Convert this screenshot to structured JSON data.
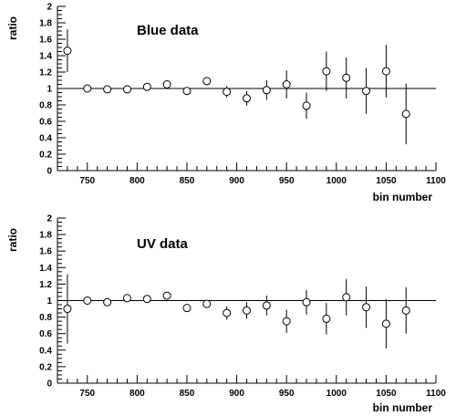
{
  "chart_data": [
    {
      "type": "scatter",
      "title": "Blue data",
      "xlabel": "bin number",
      "ylabel": "ratio",
      "xlim": [
        720,
        1100
      ],
      "ylim": [
        0,
        2
      ],
      "xticks": [
        "750",
        "800",
        "850",
        "900",
        "950",
        "1000",
        "1050",
        "1100"
      ],
      "yticks": [
        "0",
        "0.2",
        "0.4",
        "0.6",
        "0.8",
        "1",
        "1.2",
        "1.4",
        "1.6",
        "1.8",
        "2"
      ],
      "reference_line": 1,
      "marker": "open-circle",
      "grid": false,
      "points": [
        {
          "x": 730,
          "y": 1.46,
          "err": 0.26
        },
        {
          "x": 750,
          "y": 1.0,
          "err": 0.0
        },
        {
          "x": 770,
          "y": 0.99,
          "err": 0.0
        },
        {
          "x": 790,
          "y": 0.99,
          "err": 0.0
        },
        {
          "x": 810,
          "y": 1.02,
          "err": 0.0
        },
        {
          "x": 830,
          "y": 1.05,
          "err": 0.0
        },
        {
          "x": 850,
          "y": 0.97,
          "err": 0.0
        },
        {
          "x": 870,
          "y": 1.09,
          "err": 0.0
        },
        {
          "x": 890,
          "y": 0.96,
          "err": 0.07
        },
        {
          "x": 910,
          "y": 0.88,
          "err": 0.09
        },
        {
          "x": 930,
          "y": 0.98,
          "err": 0.12
        },
        {
          "x": 950,
          "y": 1.05,
          "err": 0.17
        },
        {
          "x": 970,
          "y": 0.79,
          "err": 0.16
        },
        {
          "x": 990,
          "y": 1.21,
          "err": 0.24
        },
        {
          "x": 1010,
          "y": 1.13,
          "err": 0.25
        },
        {
          "x": 1030,
          "y": 0.97,
          "err": 0.28
        },
        {
          "x": 1050,
          "y": 1.21,
          "err": 0.32
        },
        {
          "x": 1070,
          "y": 0.69,
          "err": 0.37
        }
      ]
    },
    {
      "type": "scatter",
      "title": "UV data",
      "xlabel": "bin number",
      "ylabel": "ratio",
      "xlim": [
        720,
        1100
      ],
      "ylim": [
        0,
        2
      ],
      "xticks": [
        "750",
        "800",
        "850",
        "900",
        "950",
        "1000",
        "1050",
        "1100"
      ],
      "yticks": [
        "0",
        "0.2",
        "0.4",
        "0.6",
        "0.8",
        "1",
        "1.2",
        "1.4",
        "1.6",
        "1.8",
        "2"
      ],
      "reference_line": 1,
      "marker": "open-circle",
      "grid": false,
      "points": [
        {
          "x": 730,
          "y": 0.9,
          "err": 0.42
        },
        {
          "x": 750,
          "y": 1.0,
          "err": 0.0
        },
        {
          "x": 770,
          "y": 0.98,
          "err": 0.0
        },
        {
          "x": 790,
          "y": 1.03,
          "err": 0.0
        },
        {
          "x": 810,
          "y": 1.02,
          "err": 0.0
        },
        {
          "x": 830,
          "y": 1.06,
          "err": 0.0
        },
        {
          "x": 850,
          "y": 0.91,
          "err": 0.0
        },
        {
          "x": 870,
          "y": 0.96,
          "err": 0.0
        },
        {
          "x": 890,
          "y": 0.85,
          "err": 0.08
        },
        {
          "x": 910,
          "y": 0.88,
          "err": 0.1
        },
        {
          "x": 930,
          "y": 0.94,
          "err": 0.12
        },
        {
          "x": 950,
          "y": 0.75,
          "err": 0.14
        },
        {
          "x": 970,
          "y": 0.98,
          "err": 0.15
        },
        {
          "x": 990,
          "y": 0.78,
          "err": 0.19
        },
        {
          "x": 1010,
          "y": 1.04,
          "err": 0.22
        },
        {
          "x": 1030,
          "y": 0.92,
          "err": 0.25
        },
        {
          "x": 1050,
          "y": 0.72,
          "err": 0.3
        },
        {
          "x": 1070,
          "y": 0.88,
          "err": 0.28
        }
      ]
    }
  ]
}
